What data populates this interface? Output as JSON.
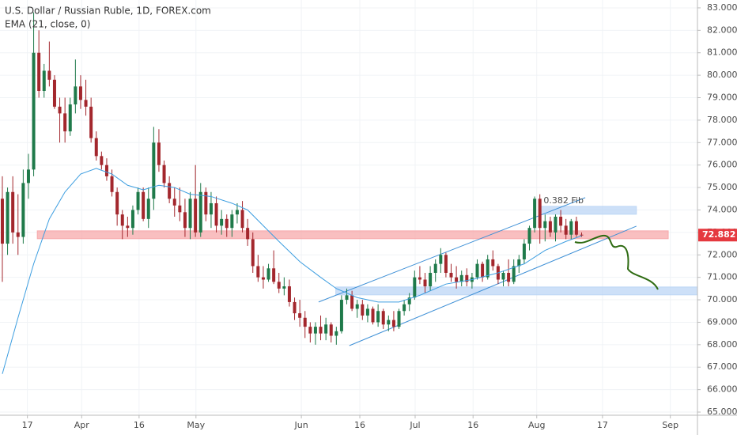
{
  "chart_data": {
    "type": "candlestick",
    "title": "U.S. Dollar / Russian Ruble, 1D, FOREX.com",
    "up_color": "#1f7a4a",
    "down_color": "#a3272d",
    "xlim": [
      -0.45,
      133.2
    ],
    "ylim": [
      64.86,
      83.35
    ],
    "xticks": [
      {
        "value": 4.8,
        "label": "17"
      },
      {
        "value": 15.2,
        "label": "Apr"
      },
      {
        "value": 26.2,
        "label": "16"
      },
      {
        "value": 37.1,
        "label": "May"
      },
      {
        "value": 57.3,
        "label": "Jun"
      },
      {
        "value": 68.5,
        "label": "16"
      },
      {
        "value": 79.1,
        "label": "Jul"
      },
      {
        "value": 90.2,
        "label": "16"
      },
      {
        "value": 102.4,
        "label": "Aug"
      },
      {
        "value": 115,
        "label": "17"
      },
      {
        "value": 128,
        "label": "Sep"
      }
    ],
    "yticks": [
      {
        "value": 65,
        "label": "65.000"
      },
      {
        "value": 66,
        "label": "66.000"
      },
      {
        "value": 67,
        "label": "67.000"
      },
      {
        "value": 68,
        "label": "68.000"
      },
      {
        "value": 69,
        "label": "69.000"
      },
      {
        "value": 70,
        "label": "70.000"
      },
      {
        "value": 71,
        "label": "71.000"
      },
      {
        "value": 72,
        "label": "72.000"
      },
      {
        "value": 73,
        "label": "73.000"
      },
      {
        "value": 74,
        "label": "74.000"
      },
      {
        "value": 75,
        "label": "75.000"
      },
      {
        "value": 76,
        "label": "76.000"
      },
      {
        "value": 77,
        "label": "77.000"
      },
      {
        "value": 78,
        "label": "78.000"
      },
      {
        "value": 79,
        "label": "79.000"
      },
      {
        "value": 80,
        "label": "80.000"
      },
      {
        "value": 81,
        "label": "81.000"
      },
      {
        "value": 82,
        "label": "82.000"
      },
      {
        "value": 83,
        "label": "83.000"
      }
    ],
    "last_price": 72.882,
    "last_price_color": "#e5393f",
    "candles": [
      [
        74.5,
        75.5,
        70.8,
        72.5
      ],
      [
        72.5,
        75,
        72,
        74.8
      ],
      [
        74.8,
        75.5,
        72.5,
        73
      ],
      [
        73,
        74.7,
        72,
        72.8
      ],
      [
        72.8,
        75.8,
        72.5,
        75.2
      ],
      [
        75.2,
        76.5,
        74.5,
        75.8
      ],
      [
        75.8,
        82.8,
        75.5,
        81
      ],
      [
        81,
        82,
        79,
        79.3
      ],
      [
        79.3,
        80.5,
        79,
        80.2
      ],
      [
        80.2,
        81.5,
        79.5,
        79.8
      ],
      [
        79.8,
        80,
        78.5,
        78.6
      ],
      [
        78.6,
        79,
        77,
        78.3
      ],
      [
        78.3,
        79,
        77,
        77.5
      ],
      [
        77.5,
        79,
        77.3,
        78.7
      ],
      [
        78.7,
        80.7,
        78.3,
        79.5
      ],
      [
        79.5,
        80,
        78.5,
        78.9
      ],
      [
        78.9,
        79.8,
        78.2,
        78.6
      ],
      [
        78.6,
        79,
        77,
        77.2
      ],
      [
        77.2,
        77.5,
        76.2,
        76.4
      ],
      [
        76.4,
        76.6,
        75.8,
        76
      ],
      [
        76,
        76.3,
        75.3,
        75.5
      ],
      [
        75.5,
        75.8,
        74.6,
        74.8
      ],
      [
        74.8,
        75,
        73.3,
        73.8
      ],
      [
        73.8,
        74,
        72.7,
        73.3
      ],
      [
        73.3,
        73.7,
        72.8,
        73.2
      ],
      [
        73.2,
        74.2,
        72.9,
        74
      ],
      [
        74,
        75,
        73.8,
        74.8
      ],
      [
        74.8,
        75,
        73.5,
        73.6
      ],
      [
        73.6,
        75,
        73.2,
        74.5
      ],
      [
        74.5,
        77.7,
        74,
        77
      ],
      [
        77,
        77.6,
        75.7,
        76
      ],
      [
        76,
        76.2,
        75,
        75.2
      ],
      [
        75.2,
        75.5,
        74.3,
        74.5
      ],
      [
        74.5,
        75,
        73.7,
        74.2
      ],
      [
        74.2,
        75,
        73.5,
        73.9
      ],
      [
        73.9,
        74.5,
        72.8,
        73.2
      ],
      [
        73.2,
        74.8,
        72.7,
        74.5
      ],
      [
        74.5,
        76,
        72.8,
        73
      ],
      [
        73,
        75.2,
        72.8,
        74.8
      ],
      [
        74.8,
        75,
        73.5,
        73.8
      ],
      [
        73.8,
        74.8,
        73.2,
        74.3
      ],
      [
        74.3,
        74.6,
        73,
        73.3
      ],
      [
        73.3,
        74,
        72.9,
        73.6
      ],
      [
        73.6,
        73.8,
        72.8,
        73.2
      ],
      [
        73.2,
        74,
        72.8,
        73.8
      ],
      [
        73.8,
        74.3,
        73.4,
        74
      ],
      [
        74,
        74.4,
        73,
        73.2
      ],
      [
        73.2,
        73.6,
        72.4,
        72.7
      ],
      [
        72.7,
        73,
        71.2,
        71.5
      ],
      [
        71.5,
        72,
        70.8,
        71
      ],
      [
        71,
        71.5,
        70.5,
        70.9
      ],
      [
        70.9,
        71.6,
        70.8,
        71.4
      ],
      [
        71.4,
        72.2,
        70.7,
        70.8
      ],
      [
        70.8,
        71.2,
        70.3,
        70.5
      ],
      [
        70.5,
        71,
        70.2,
        70.6
      ],
      [
        70.6,
        70.9,
        69.7,
        69.9
      ],
      [
        69.9,
        70.1,
        69.1,
        69.4
      ],
      [
        69.4,
        70,
        68.8,
        69.2
      ],
      [
        69.2,
        69.5,
        68.3,
        68.8
      ],
      [
        68.8,
        69,
        68.1,
        68.5
      ],
      [
        68.5,
        69,
        68,
        68.8
      ],
      [
        68.8,
        69.3,
        68.2,
        68.5
      ],
      [
        68.5,
        69.2,
        68.2,
        68.9
      ],
      [
        68.9,
        69,
        68.1,
        68.4
      ],
      [
        68.4,
        68.8,
        68,
        68.6
      ],
      [
        68.6,
        70.2,
        68.5,
        70
      ],
      [
        70,
        70.5,
        69.8,
        70.2
      ],
      [
        70.2,
        70.4,
        69.5,
        69.6
      ],
      [
        69.6,
        70,
        69.2,
        69.8
      ],
      [
        69.8,
        70,
        69.1,
        69.3
      ],
      [
        69.3,
        69.8,
        69,
        69.6
      ],
      [
        69.6,
        69.7,
        68.9,
        69
      ],
      [
        69,
        69.8,
        68.8,
        69.5
      ],
      [
        69.5,
        69.6,
        68.7,
        68.9
      ],
      [
        68.9,
        69.3,
        68.6,
        69.1
      ],
      [
        69.1,
        69.5,
        68.6,
        68.8
      ],
      [
        68.8,
        69.6,
        68.7,
        69.5
      ],
      [
        69.5,
        70,
        69.3,
        69.8
      ],
      [
        69.8,
        70.3,
        69.5,
        70.1
      ],
      [
        70.1,
        71.3,
        70,
        71
      ],
      [
        71,
        71.5,
        70.7,
        70.9
      ],
      [
        70.9,
        71.2,
        70.3,
        70.6
      ],
      [
        70.6,
        71.5,
        70.4,
        71.2
      ],
      [
        71.2,
        71.8,
        70.8,
        71.6
      ],
      [
        71.6,
        72.3,
        71.2,
        72
      ],
      [
        72,
        72.1,
        71,
        71.2
      ],
      [
        71.2,
        71.6,
        70.8,
        71
      ],
      [
        71,
        71.5,
        70.5,
        70.8
      ],
      [
        70.8,
        71.3,
        70.6,
        71.1
      ],
      [
        71.1,
        71.4,
        70.6,
        70.8
      ],
      [
        70.8,
        71.2,
        70.5,
        71
      ],
      [
        71,
        71.8,
        70.9,
        71.6
      ],
      [
        71.6,
        71.7,
        70.8,
        71
      ],
      [
        71,
        72,
        70.9,
        71.8
      ],
      [
        71.8,
        72.2,
        71.3,
        71.5
      ],
      [
        71.5,
        71.6,
        70.7,
        70.9
      ],
      [
        70.9,
        71.3,
        70.6,
        71.2
      ],
      [
        71.2,
        71.8,
        70.6,
        70.8
      ],
      [
        70.8,
        71.8,
        70.7,
        71.5
      ],
      [
        71.5,
        72,
        71.2,
        71.8
      ],
      [
        71.8,
        72.7,
        71.6,
        72.5
      ],
      [
        72.5,
        73.3,
        72.2,
        73.2
      ],
      [
        73.2,
        74.6,
        73,
        74.5
      ],
      [
        74.5,
        74.7,
        72.5,
        73.2
      ],
      [
        73.2,
        73.8,
        72.6,
        73.5
      ],
      [
        73.5,
        73.7,
        72.8,
        73
      ],
      [
        73,
        73.8,
        72.6,
        73.7
      ],
      [
        73.7,
        74,
        73,
        73.3
      ],
      [
        73.3,
        73.6,
        72.7,
        72.9
      ],
      [
        72.9,
        73.6,
        72.7,
        73.5
      ],
      [
        73.5,
        73.7,
        72.8,
        72.9
      ],
      [
        72.9,
        73,
        72.8,
        72.882
      ]
    ],
    "indicator": {
      "name": "EMA (21, close, 0)",
      "color": "#3d9ee0",
      "x": [
        0,
        3,
        6,
        9,
        12,
        15,
        18,
        21,
        24,
        27,
        30,
        33,
        36,
        40,
        44,
        47,
        50,
        53,
        57,
        61,
        64,
        68,
        72,
        76,
        80,
        85,
        90,
        95,
        100,
        104,
        108,
        111
      ],
      "values": [
        66.7,
        69.2,
        71.6,
        73.6,
        74.8,
        75.6,
        75.85,
        75.6,
        75.1,
        74.9,
        75.1,
        75.0,
        74.7,
        74.6,
        74.3,
        74.0,
        73.3,
        72.6,
        71.7,
        71.0,
        70.5,
        70.1,
        69.9,
        69.9,
        70.2,
        70.7,
        70.9,
        71.2,
        71.6,
        72.2,
        72.6,
        72.85
      ]
    },
    "zones": [
      {
        "color": "#f7a9ab",
        "x": [
          6.7,
          127.6
        ],
        "y": [
          72.72,
          73.07
        ]
      },
      {
        "color": "#bcd6f5",
        "x": [
          102.8,
          121.5
        ],
        "y": [
          73.81,
          74.16
        ]
      },
      {
        "color": "#bcd6f5",
        "x": [
          63.9,
          133.2
        ],
        "y": [
          70.22,
          70.57
        ]
      }
    ],
    "trendlines": [
      {
        "color": "#3d8fd6",
        "x": [
          60.6,
          111.7
        ],
        "y": [
          69.9,
          74.55
        ]
      },
      {
        "color": "#3d8fd6",
        "x": [
          66.5,
          121.5
        ],
        "y": [
          67.96,
          73.28
        ]
      }
    ],
    "annotations": [
      {
        "text": "0.382 Fib",
        "x": 102.8,
        "y": 74.4
      }
    ]
  }
}
